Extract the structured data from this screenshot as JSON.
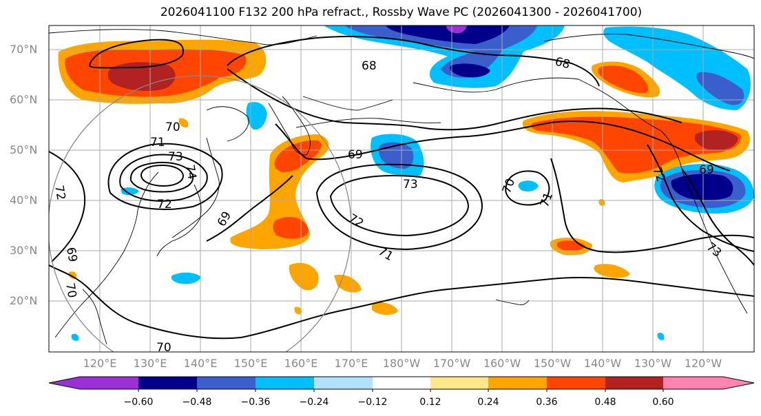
{
  "title": "2026041100 F132 200 hPa refract., Rossby Wave PC (2026041300 - 2026041700)",
  "lat_labels": [
    "70°N",
    "60°N",
    "50°N",
    "40°N",
    "30°N",
    "20°N"
  ],
  "lon_labels": [
    "120°E",
    "130°E",
    "140°E",
    "150°E",
    "160°E",
    "170°E",
    "180°W",
    "170°W",
    "160°W",
    "150°W",
    "140°W",
    "130°W",
    "120°W"
  ],
  "contour_labels": [
    "68",
    "68",
    "69",
    "69",
    "69",
    "69",
    "70",
    "70",
    "70",
    "70",
    "71",
    "71",
    "71",
    "72",
    "72",
    "72",
    "72",
    "73",
    "73",
    "73",
    "74"
  ],
  "colorbar": {
    "ticks": [
      "−0.60",
      "−0.48",
      "−0.36",
      "−0.24",
      "−0.12",
      "0.12",
      "0.24",
      "0.36",
      "0.48",
      "0.60"
    ],
    "colors": [
      "#9b30d9",
      "#00008b",
      "#3a5fcd",
      "#00bfff",
      "#b0e2ff",
      "#ffffff",
      "#ffe88a",
      "#ffa500",
      "#ff4500",
      "#b22222",
      "#ff85b0"
    ]
  },
  "colors": {
    "grid": "#aaaaaa",
    "coast": "#000000",
    "contour": "#000000",
    "circle": "#888888"
  }
}
